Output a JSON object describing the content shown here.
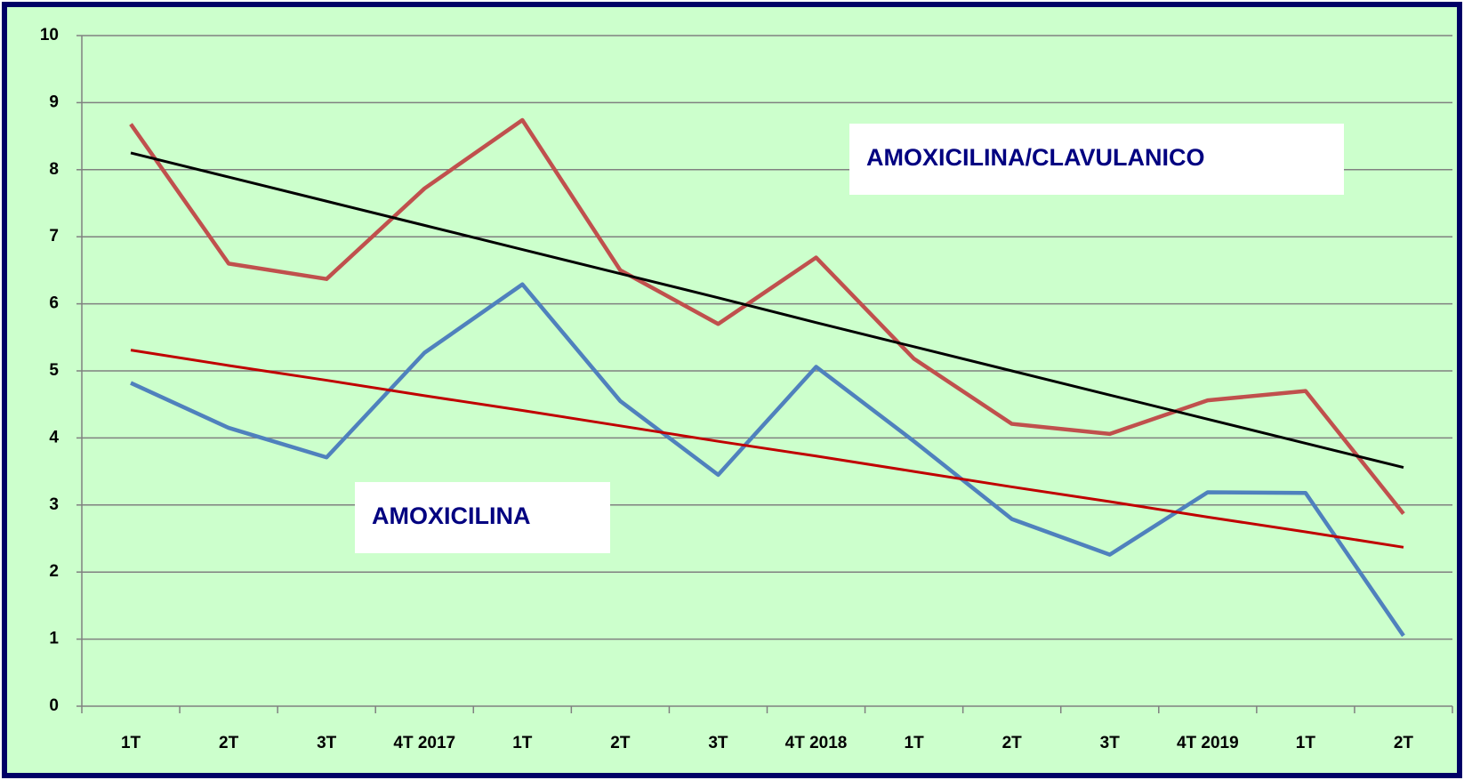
{
  "chart_data": {
    "type": "line",
    "categories": [
      "1T",
      "2T",
      "3T",
      "4T 2017",
      "1T",
      "2T",
      "3T",
      "4T 2018",
      "1T",
      "2T",
      "3T",
      "4T 2019",
      "1T",
      "2T"
    ],
    "series": [
      {
        "name": "AMOXICILINA/CLAVULANICO",
        "color": "#c0504d",
        "values": [
          8.68,
          6.6,
          6.37,
          7.72,
          8.74,
          6.5,
          5.7,
          6.69,
          5.18,
          4.21,
          4.06,
          4.56,
          4.7,
          2.87
        ]
      },
      {
        "name": "AMOXICILINA",
        "color": "#4f81bd",
        "values": [
          4.82,
          4.15,
          3.71,
          5.27,
          6.29,
          4.55,
          3.45,
          5.06,
          3.95,
          2.79,
          2.26,
          3.19,
          3.18,
          1.05
        ]
      }
    ],
    "trendlines": [
      {
        "color": "#000000",
        "values": [
          8.25,
          7.89,
          7.53,
          7.17,
          6.81,
          6.45,
          6.09,
          5.72,
          5.36,
          5.0,
          4.64,
          4.28,
          3.92,
          3.56
        ]
      },
      {
        "color": "#c00000",
        "values": [
          5.31,
          5.08,
          4.86,
          4.63,
          4.41,
          4.18,
          3.95,
          3.73,
          3.5,
          3.27,
          3.05,
          2.82,
          2.6,
          2.37
        ]
      }
    ],
    "ylim": [
      0,
      10
    ],
    "yticks": [
      0,
      1,
      2,
      3,
      4,
      5,
      6,
      7,
      8,
      9,
      10
    ],
    "grid": true
  }
}
